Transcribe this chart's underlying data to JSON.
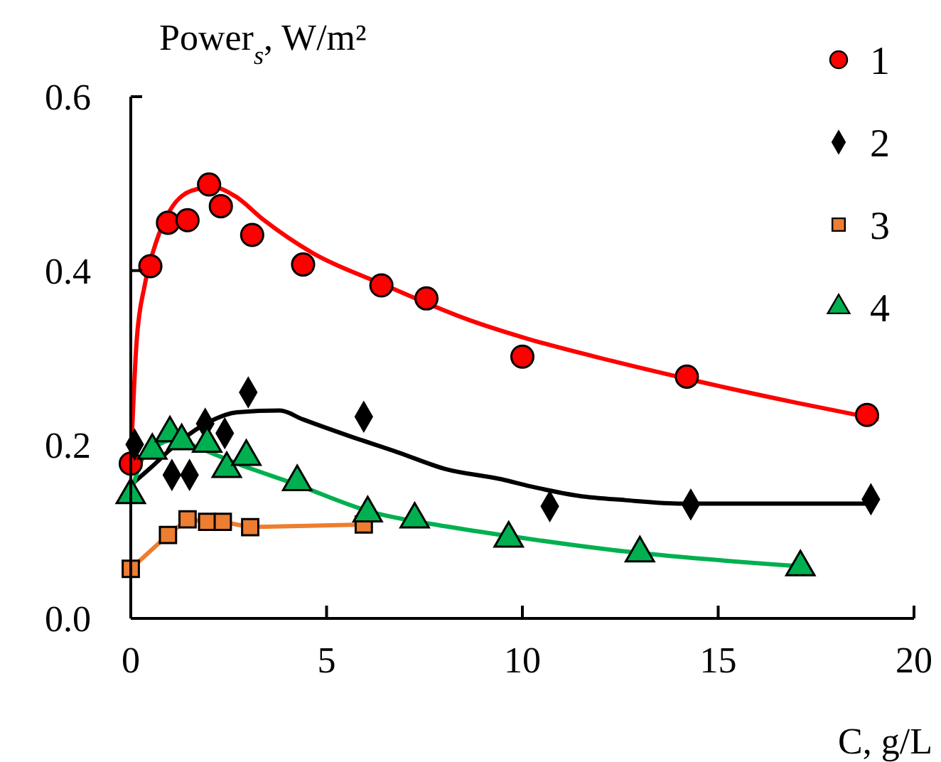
{
  "chart_data": {
    "type": "scatter",
    "xlabel": "C, g/L",
    "ylabel": "Power$_{s}$, W/m²",
    "xlim": [
      0,
      20
    ],
    "ylim": [
      0,
      0.6
    ],
    "xticks": [
      0,
      5,
      10,
      15,
      20
    ],
    "yticks": [
      {
        "value": 0,
        "label": "0.0"
      },
      0.2,
      0.4,
      0.6
    ],
    "grid": false,
    "legend": "top right",
    "series": [
      {
        "name": "1",
        "marker": "circle",
        "color": "#ff0000",
        "x": [
          0,
          0.5,
          0.95,
          1.45,
          2.0,
          2.3,
          3.1,
          4.4,
          6.4,
          7.55,
          10.0,
          14.2,
          18.8
        ],
        "values": [
          0.178,
          0.405,
          0.455,
          0.458,
          0.499,
          0.474,
          0.441,
          0.407,
          0.383,
          0.368,
          0.301,
          0.278,
          0.234
        ]
      },
      {
        "name": "2",
        "marker": "diamond",
        "color": "#000000",
        "x": [
          0.1,
          1.05,
          1.5,
          1.9,
          2.4,
          3.0,
          5.95,
          10.7,
          14.3,
          18.9
        ],
        "values": [
          0.2,
          0.165,
          0.165,
          0.224,
          0.213,
          0.26,
          0.232,
          0.129,
          0.131,
          0.137
        ]
      },
      {
        "name": "3",
        "type": "line",
        "marker": "square",
        "color": "#ed7d31",
        "x": [
          0,
          0.95,
          1.45,
          1.95,
          2.35,
          3.05,
          5.95
        ],
        "values": [
          0.057,
          0.096,
          0.114,
          0.111,
          0.111,
          0.105,
          0.108
        ]
      },
      {
        "name": "4",
        "marker": "triangle",
        "color": "#00b050",
        "x": [
          0,
          0.55,
          1.0,
          1.3,
          1.95,
          2.45,
          2.95,
          4.25,
          6.05,
          7.25,
          9.65,
          13.0,
          17.1
        ],
        "values": [
          0.142,
          0.193,
          0.213,
          0.204,
          0.201,
          0.172,
          0.186,
          0.157,
          0.121,
          0.114,
          0.092,
          0.075,
          0.059
        ]
      },
      {
        "type": "line",
        "marker": "none",
        "color": "#ff0000",
        "x": [
          0,
          0.15,
          0.36,
          0.65,
          1.0,
          1.56,
          2.1,
          2.65,
          3.4,
          4.65,
          6.45,
          8.65,
          10.1,
          12.3,
          14.45,
          17.0,
          19.1
        ],
        "values": [
          0.178,
          0.319,
          0.384,
          0.433,
          0.469,
          0.492,
          0.496,
          0.486,
          0.458,
          0.42,
          0.384,
          0.343,
          0.322,
          0.296,
          0.273,
          0.248,
          0.229
        ]
      },
      {
        "type": "line",
        "marker": "none",
        "color": "#000000",
        "x": [
          0.04,
          0.55,
          1.13,
          2.0,
          2.72,
          3.81,
          4.39,
          5.63,
          6.82,
          8.02,
          9.47,
          10.2,
          11.43,
          12.63,
          14.08,
          18.8
        ],
        "values": [
          0.155,
          0.175,
          0.199,
          0.226,
          0.237,
          0.239,
          0.229,
          0.209,
          0.191,
          0.172,
          0.16,
          0.152,
          0.141,
          0.136,
          0.132,
          0.132
        ]
      },
      {
        "type": "line",
        "marker": "none",
        "color": "#00b050",
        "x": [
          0,
          0.29,
          0.76,
          1.13,
          1.74,
          2.72,
          4.17,
          6.1,
          8.02,
          9.62,
          12.63,
          17.1
        ],
        "values": [
          0.142,
          0.183,
          0.201,
          0.206,
          0.196,
          0.178,
          0.155,
          0.123,
          0.106,
          0.095,
          0.077,
          0.06
        ]
      }
    ]
  }
}
